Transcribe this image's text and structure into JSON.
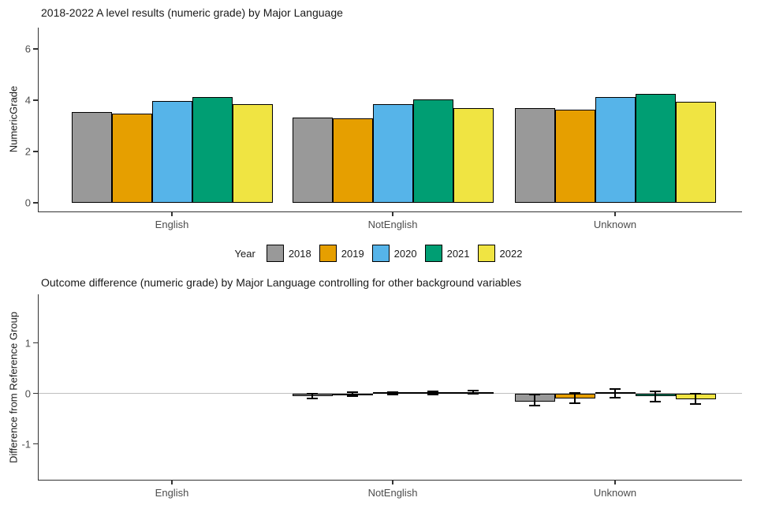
{
  "styles": {
    "axis_line_color": "#333333",
    "tick_label_color": "#4d4d4d",
    "reference_line_color": "#bfbfbf",
    "bar_outline_color": "#000000",
    "background": "#ffffff"
  },
  "legend": {
    "title": "Year",
    "position": "between-charts-centered"
  },
  "chart_data": [
    {
      "type": "bar",
      "title": "2018-2022 A level results (numeric grade) by Major Language",
      "xlabel": "",
      "ylabel": "NumericGrade",
      "categories": [
        "English",
        "NotEnglish",
        "Unknown"
      ],
      "series": [
        {
          "name": "2018",
          "color": "#999999",
          "values": [
            3.53,
            3.33,
            3.7
          ]
        },
        {
          "name": "2019",
          "color": "#E69F00",
          "values": [
            3.47,
            3.28,
            3.64
          ]
        },
        {
          "name": "2020",
          "color": "#56B4E9",
          "values": [
            3.96,
            3.86,
            4.11
          ]
        },
        {
          "name": "2021",
          "color": "#009E73",
          "values": [
            4.13,
            4.03,
            4.25
          ]
        },
        {
          "name": "2022",
          "color": "#F0E442",
          "values": [
            3.84,
            3.68,
            3.95
          ]
        }
      ],
      "yticks": [
        0,
        2,
        4,
        6
      ],
      "ylim": [
        0,
        6.8
      ],
      "grid": false,
      "legend_entries": [
        "2018",
        "2019",
        "2020",
        "2021",
        "2022"
      ]
    },
    {
      "type": "bar",
      "title": "Outcome difference (numeric grade) by Major Language controlling for other background variables",
      "xlabel": "",
      "ylabel": "Difference from Reference Group",
      "categories": [
        "English",
        "NotEnglish",
        "Unknown"
      ],
      "series": [
        {
          "name": "2018",
          "color": "#999999",
          "values": [
            0,
            -0.05,
            -0.16
          ],
          "err_low": [
            null,
            -0.1,
            -0.24
          ],
          "err_high": [
            null,
            -0.01,
            -0.02
          ]
        },
        {
          "name": "2019",
          "color": "#E69F00",
          "values": [
            0,
            -0.02,
            -0.1
          ],
          "err_low": [
            null,
            -0.05,
            -0.2
          ],
          "err_high": [
            null,
            0.02,
            0.01
          ]
        },
        {
          "name": "2020",
          "color": "#56B4E9",
          "values": [
            0,
            0.01,
            0.0
          ],
          "err_low": [
            null,
            -0.02,
            -0.08
          ],
          "err_high": [
            null,
            0.03,
            0.08
          ]
        },
        {
          "name": "2021",
          "color": "#009E73",
          "values": [
            0,
            0.01,
            -0.06
          ],
          "err_low": [
            null,
            -0.02,
            -0.17
          ],
          "err_high": [
            null,
            0.04,
            0.04
          ]
        },
        {
          "name": "2022",
          "color": "#F0E442",
          "values": [
            0,
            0.03,
            -0.11
          ],
          "err_low": [
            null,
            0.0,
            -0.21
          ],
          "err_high": [
            null,
            0.06,
            0.0
          ]
        }
      ],
      "yticks": [
        1,
        0,
        -1
      ],
      "ylim": [
        -1.7,
        1.95
      ],
      "reference_line": 0,
      "grid": false
    }
  ]
}
